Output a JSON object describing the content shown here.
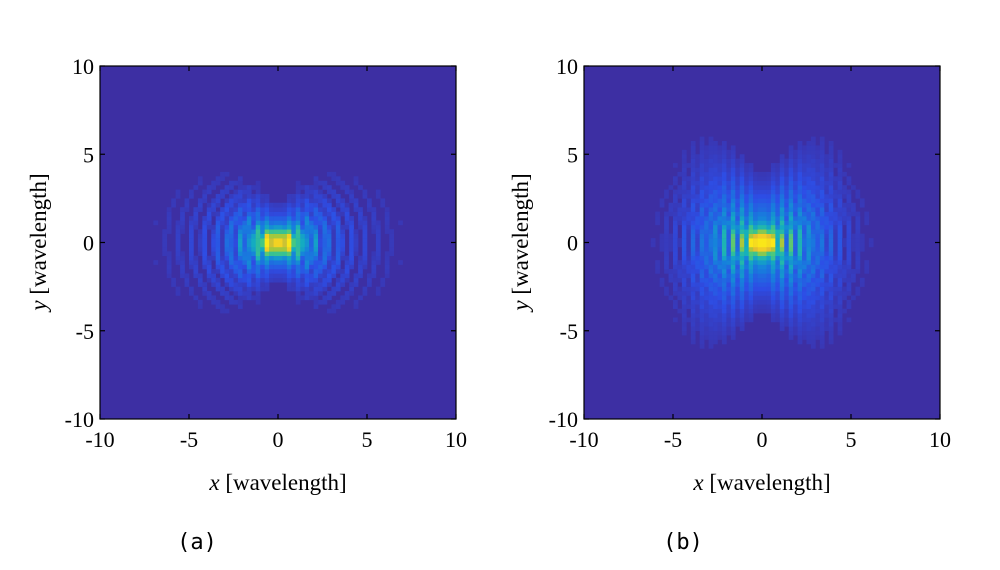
{
  "chart_data": [
    {
      "type": "heatmap",
      "caption": "(a)",
      "xlabel_var": "x",
      "xlabel_unit": "[wavelength]",
      "ylabel_var": "y",
      "ylabel_unit": "[wavelength]",
      "xlim": [
        -10,
        10
      ],
      "ylim": [
        -10,
        10
      ],
      "xticks": [
        "-10",
        "-5",
        "0",
        "5",
        "10"
      ],
      "yticks": [
        "-10",
        "-5",
        "0",
        "5",
        "10"
      ],
      "xtick_values": [
        -10,
        -5,
        0,
        5,
        10
      ],
      "ytick_values": [
        -10,
        -5,
        0,
        5,
        10
      ],
      "colormap": "parula",
      "background_color": "#3d2fa3",
      "pattern": {
        "core_half_width_x": 2.2,
        "core_half_height_y": 1.4,
        "lobe_spread": 0.5,
        "ring_spacing": 0.7,
        "ring_extent": 8.5,
        "peak_centers_x": [
          -0.45,
          0.45
        ]
      }
    },
    {
      "type": "heatmap",
      "caption": "(b)",
      "xlabel_var": "x",
      "xlabel_unit": "[wavelength]",
      "ylabel_var": "y",
      "ylabel_unit": "[wavelength]",
      "xlim": [
        -10,
        10
      ],
      "ylim": [
        -10,
        10
      ],
      "xticks": [
        "-10",
        "-5",
        "0",
        "5",
        "10"
      ],
      "yticks": [
        "-10",
        "-5",
        "0",
        "5",
        "10"
      ],
      "xtick_values": [
        -10,
        -5,
        0,
        5,
        10
      ],
      "ytick_values": [
        -10,
        -5,
        0,
        5,
        10
      ],
      "colormap": "parula",
      "background_color": "#3d2fa3",
      "pattern": {
        "core_half_width_x": 3.2,
        "core_half_height_y": 2.4,
        "lobe_spread": 0.75,
        "ring_spacing": 0.55,
        "ring_extent": 7.0,
        "peak_centers_x": [
          -0.3,
          0.3
        ]
      }
    }
  ]
}
